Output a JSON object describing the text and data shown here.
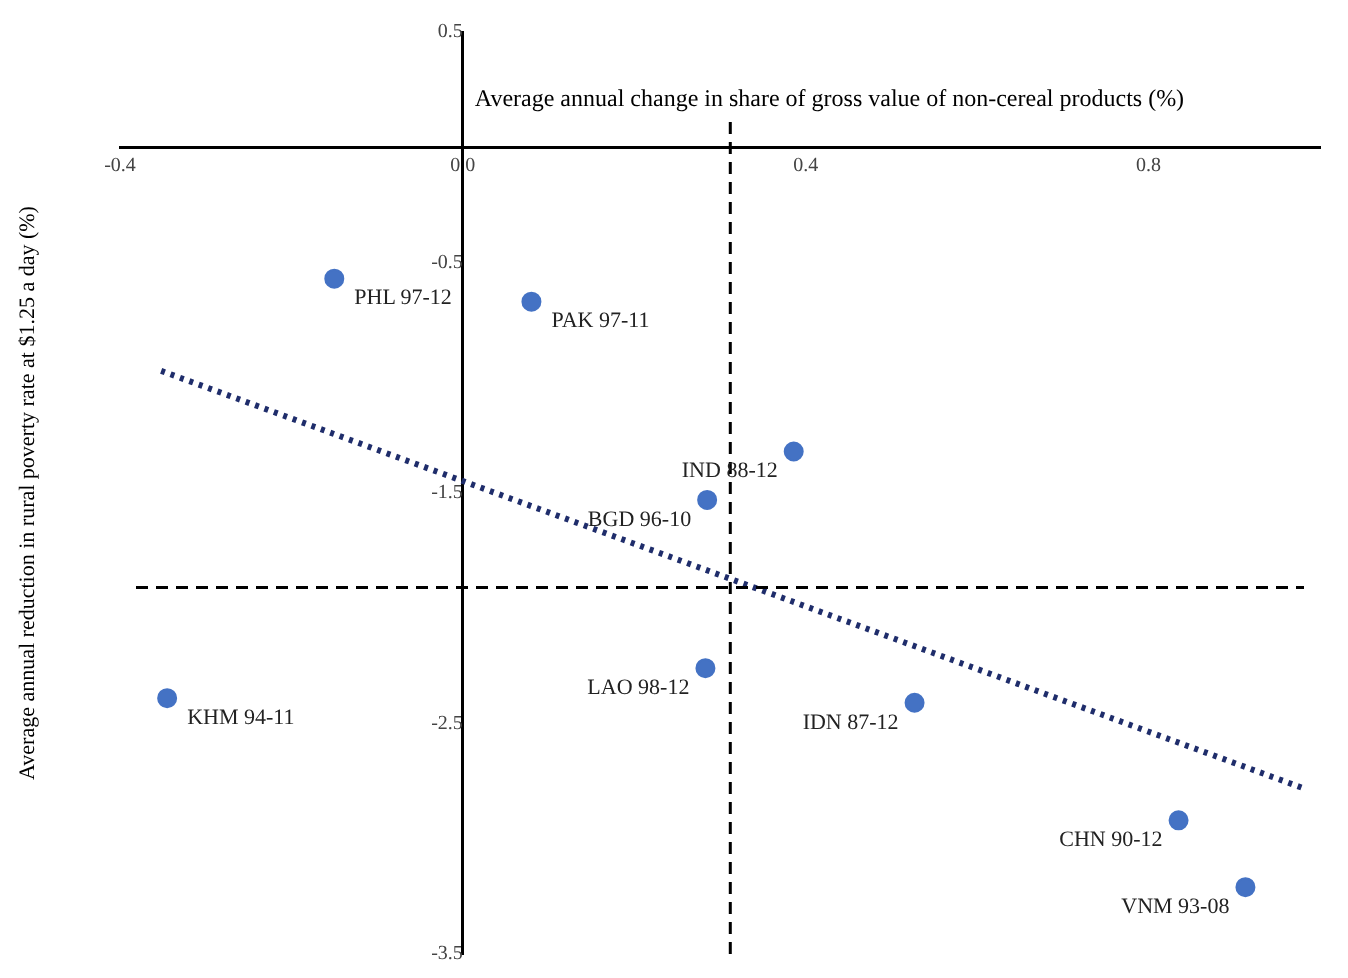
{
  "chart_data": {
    "type": "scatter",
    "xlabel": "Average annual change in share of gross value of non-cereal products (%)",
    "ylabel": "Average annual reduction in rural poverty rate at $1.25 a day (%)",
    "series": [
      {
        "color": "#4472c4",
        "marker": "circle",
        "x": [
          -0.15,
          0.08,
          0.386,
          0.285,
          0.283,
          -0.345,
          0.527,
          0.835,
          0.913
        ],
        "values": [
          -0.57,
          -0.67,
          -1.32,
          -1.53,
          -2.26,
          -2.39,
          -2.41,
          -2.92,
          -3.21
        ]
      },
      {
        "type": "line",
        "color": "#1f2d6b",
        "line_style": "dotted",
        "marker": "none",
        "x": [
          -0.352,
          0.98
        ],
        "values": [
          -0.97,
          -2.78
        ]
      }
    ],
    "annotations": [
      {
        "text": "PHL 97-12",
        "x": -0.15,
        "y": -0.57
      },
      {
        "text": "PAK 97-11",
        "x": 0.08,
        "y": -0.67
      },
      {
        "text": "IND 88-12",
        "x": 0.386,
        "y": -1.32
      },
      {
        "text": "BGD 96-10",
        "x": 0.285,
        "y": -1.53
      },
      {
        "text": "LAO 98-12",
        "x": 0.283,
        "y": -2.26
      },
      {
        "text": "KHM 94-11",
        "x": -0.345,
        "y": -2.39
      },
      {
        "text": "IDN 87-12",
        "x": 0.527,
        "y": -2.41
      },
      {
        "text": "CHN 90-12",
        "x": 0.835,
        "y": -2.92
      },
      {
        "text": "VNM 93-08",
        "x": 0.913,
        "y": -3.21
      }
    ],
    "ref_lines": [
      {
        "axis": "x",
        "value": 0.312,
        "color": "#000000",
        "line_style": "dashed"
      },
      {
        "axis": "y",
        "value": -1.91,
        "color": "#000000",
        "line_style": "dashed"
      }
    ],
    "xlim": [
      -0.4,
      1.0
    ],
    "xticks": [
      -0.4,
      {
        "value": 0,
        "label": "0.0"
      },
      0.4,
      0.8
    ],
    "ylim": [
      -3.5,
      0.5
    ],
    "yticks": [
      0.5,
      -0.5,
      -1.5,
      -2.5,
      -3.5
    ],
    "grid": false,
    "legend": false
  }
}
